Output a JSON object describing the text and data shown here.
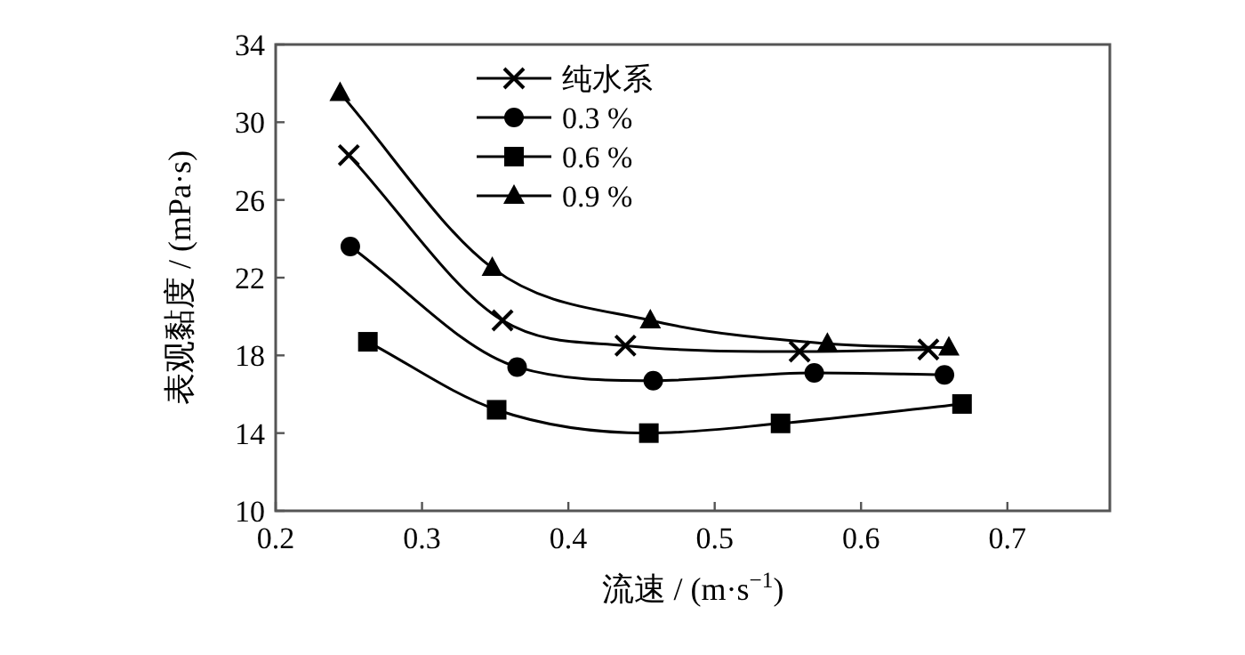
{
  "chart_data": {
    "type": "line",
    "xlabel": "流速 / (m·s$^{−1}$)",
    "ylabel": "表观黏度 / (mPa·s)",
    "xlim": [
      0.2,
      0.77
    ],
    "xticks": [
      0.2,
      0.3,
      0.4,
      0.5,
      0.6,
      0.7
    ],
    "ylim": [
      10,
      34
    ],
    "yticks": [
      10,
      14,
      18,
      22,
      26,
      30,
      34
    ],
    "grid": false,
    "legend": "top",
    "line_style": "solid",
    "series": [
      {
        "name": "纯水系",
        "color": "#000000",
        "marker": "cross",
        "x": [
          0.25,
          0.355,
          0.439,
          0.558,
          0.646
        ],
        "values": [
          28.3,
          19.8,
          18.5,
          18.2,
          18.3
        ]
      },
      {
        "name": "0.3 %",
        "color": "#000000",
        "marker": "circle",
        "x": [
          0.251,
          0.365,
          0.458,
          0.568,
          0.657
        ],
        "values": [
          23.6,
          17.4,
          16.7,
          17.1,
          17.0
        ]
      },
      {
        "name": "0.6 %",
        "color": "#000000",
        "marker": "square",
        "x": [
          0.263,
          0.351,
          0.455,
          0.545,
          0.669
        ],
        "values": [
          18.7,
          15.2,
          14.0,
          14.5,
          15.5
        ]
      },
      {
        "name": "0.9 %",
        "color": "#000000",
        "marker": "triangle",
        "x": [
          0.244,
          0.348,
          0.456,
          0.577,
          0.66
        ],
        "values": [
          31.5,
          22.5,
          19.8,
          18.6,
          18.4
        ]
      }
    ]
  }
}
